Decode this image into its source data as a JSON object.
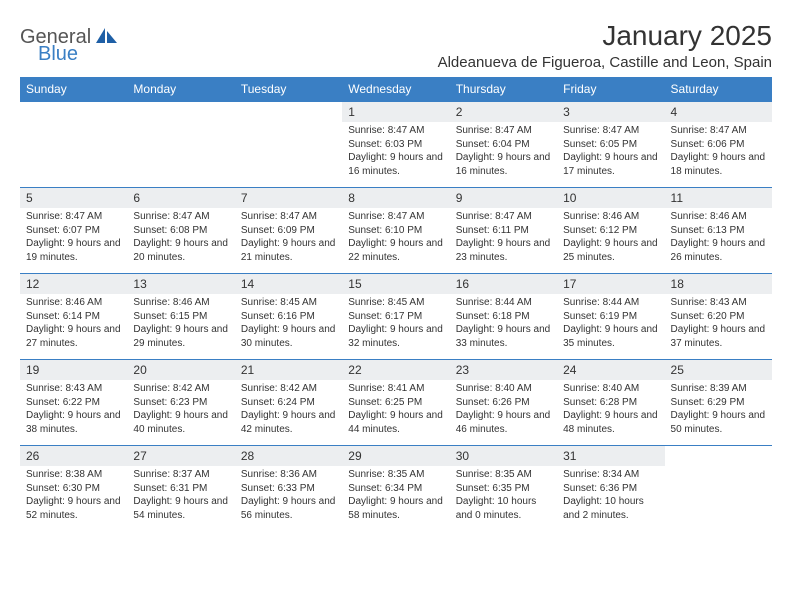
{
  "brand": {
    "general": "General",
    "blue": "Blue",
    "icon_color": "#1e5fa6"
  },
  "title": "January 2025",
  "location": "Aldeanueva de Figueroa, Castille and Leon, Spain",
  "colors": {
    "header_bg": "#3a7fc4",
    "header_fg": "#ffffff",
    "daynum_bg": "#eceef0",
    "border": "#3a7fc4",
    "text": "#333333",
    "background": "#ffffff"
  },
  "weekdays": [
    "Sunday",
    "Monday",
    "Tuesday",
    "Wednesday",
    "Thursday",
    "Friday",
    "Saturday"
  ],
  "weeks": [
    [
      null,
      null,
      null,
      {
        "n": "1",
        "sr": "8:47 AM",
        "ss": "6:03 PM",
        "dl": "9 hours and 16 minutes."
      },
      {
        "n": "2",
        "sr": "8:47 AM",
        "ss": "6:04 PM",
        "dl": "9 hours and 16 minutes."
      },
      {
        "n": "3",
        "sr": "8:47 AM",
        "ss": "6:05 PM",
        "dl": "9 hours and 17 minutes."
      },
      {
        "n": "4",
        "sr": "8:47 AM",
        "ss": "6:06 PM",
        "dl": "9 hours and 18 minutes."
      }
    ],
    [
      {
        "n": "5",
        "sr": "8:47 AM",
        "ss": "6:07 PM",
        "dl": "9 hours and 19 minutes."
      },
      {
        "n": "6",
        "sr": "8:47 AM",
        "ss": "6:08 PM",
        "dl": "9 hours and 20 minutes."
      },
      {
        "n": "7",
        "sr": "8:47 AM",
        "ss": "6:09 PM",
        "dl": "9 hours and 21 minutes."
      },
      {
        "n": "8",
        "sr": "8:47 AM",
        "ss": "6:10 PM",
        "dl": "9 hours and 22 minutes."
      },
      {
        "n": "9",
        "sr": "8:47 AM",
        "ss": "6:11 PM",
        "dl": "9 hours and 23 minutes."
      },
      {
        "n": "10",
        "sr": "8:46 AM",
        "ss": "6:12 PM",
        "dl": "9 hours and 25 minutes."
      },
      {
        "n": "11",
        "sr": "8:46 AM",
        "ss": "6:13 PM",
        "dl": "9 hours and 26 minutes."
      }
    ],
    [
      {
        "n": "12",
        "sr": "8:46 AM",
        "ss": "6:14 PM",
        "dl": "9 hours and 27 minutes."
      },
      {
        "n": "13",
        "sr": "8:46 AM",
        "ss": "6:15 PM",
        "dl": "9 hours and 29 minutes."
      },
      {
        "n": "14",
        "sr": "8:45 AM",
        "ss": "6:16 PM",
        "dl": "9 hours and 30 minutes."
      },
      {
        "n": "15",
        "sr": "8:45 AM",
        "ss": "6:17 PM",
        "dl": "9 hours and 32 minutes."
      },
      {
        "n": "16",
        "sr": "8:44 AM",
        "ss": "6:18 PM",
        "dl": "9 hours and 33 minutes."
      },
      {
        "n": "17",
        "sr": "8:44 AM",
        "ss": "6:19 PM",
        "dl": "9 hours and 35 minutes."
      },
      {
        "n": "18",
        "sr": "8:43 AM",
        "ss": "6:20 PM",
        "dl": "9 hours and 37 minutes."
      }
    ],
    [
      {
        "n": "19",
        "sr": "8:43 AM",
        "ss": "6:22 PM",
        "dl": "9 hours and 38 minutes."
      },
      {
        "n": "20",
        "sr": "8:42 AM",
        "ss": "6:23 PM",
        "dl": "9 hours and 40 minutes."
      },
      {
        "n": "21",
        "sr": "8:42 AM",
        "ss": "6:24 PM",
        "dl": "9 hours and 42 minutes."
      },
      {
        "n": "22",
        "sr": "8:41 AM",
        "ss": "6:25 PM",
        "dl": "9 hours and 44 minutes."
      },
      {
        "n": "23",
        "sr": "8:40 AM",
        "ss": "6:26 PM",
        "dl": "9 hours and 46 minutes."
      },
      {
        "n": "24",
        "sr": "8:40 AM",
        "ss": "6:28 PM",
        "dl": "9 hours and 48 minutes."
      },
      {
        "n": "25",
        "sr": "8:39 AM",
        "ss": "6:29 PM",
        "dl": "9 hours and 50 minutes."
      }
    ],
    [
      {
        "n": "26",
        "sr": "8:38 AM",
        "ss": "6:30 PM",
        "dl": "9 hours and 52 minutes."
      },
      {
        "n": "27",
        "sr": "8:37 AM",
        "ss": "6:31 PM",
        "dl": "9 hours and 54 minutes."
      },
      {
        "n": "28",
        "sr": "8:36 AM",
        "ss": "6:33 PM",
        "dl": "9 hours and 56 minutes."
      },
      {
        "n": "29",
        "sr": "8:35 AM",
        "ss": "6:34 PM",
        "dl": "9 hours and 58 minutes."
      },
      {
        "n": "30",
        "sr": "8:35 AM",
        "ss": "6:35 PM",
        "dl": "10 hours and 0 minutes."
      },
      {
        "n": "31",
        "sr": "8:34 AM",
        "ss": "6:36 PM",
        "dl": "10 hours and 2 minutes."
      },
      null
    ]
  ],
  "labels": {
    "sunrise": "Sunrise:",
    "sunset": "Sunset:",
    "daylight": "Daylight:"
  }
}
